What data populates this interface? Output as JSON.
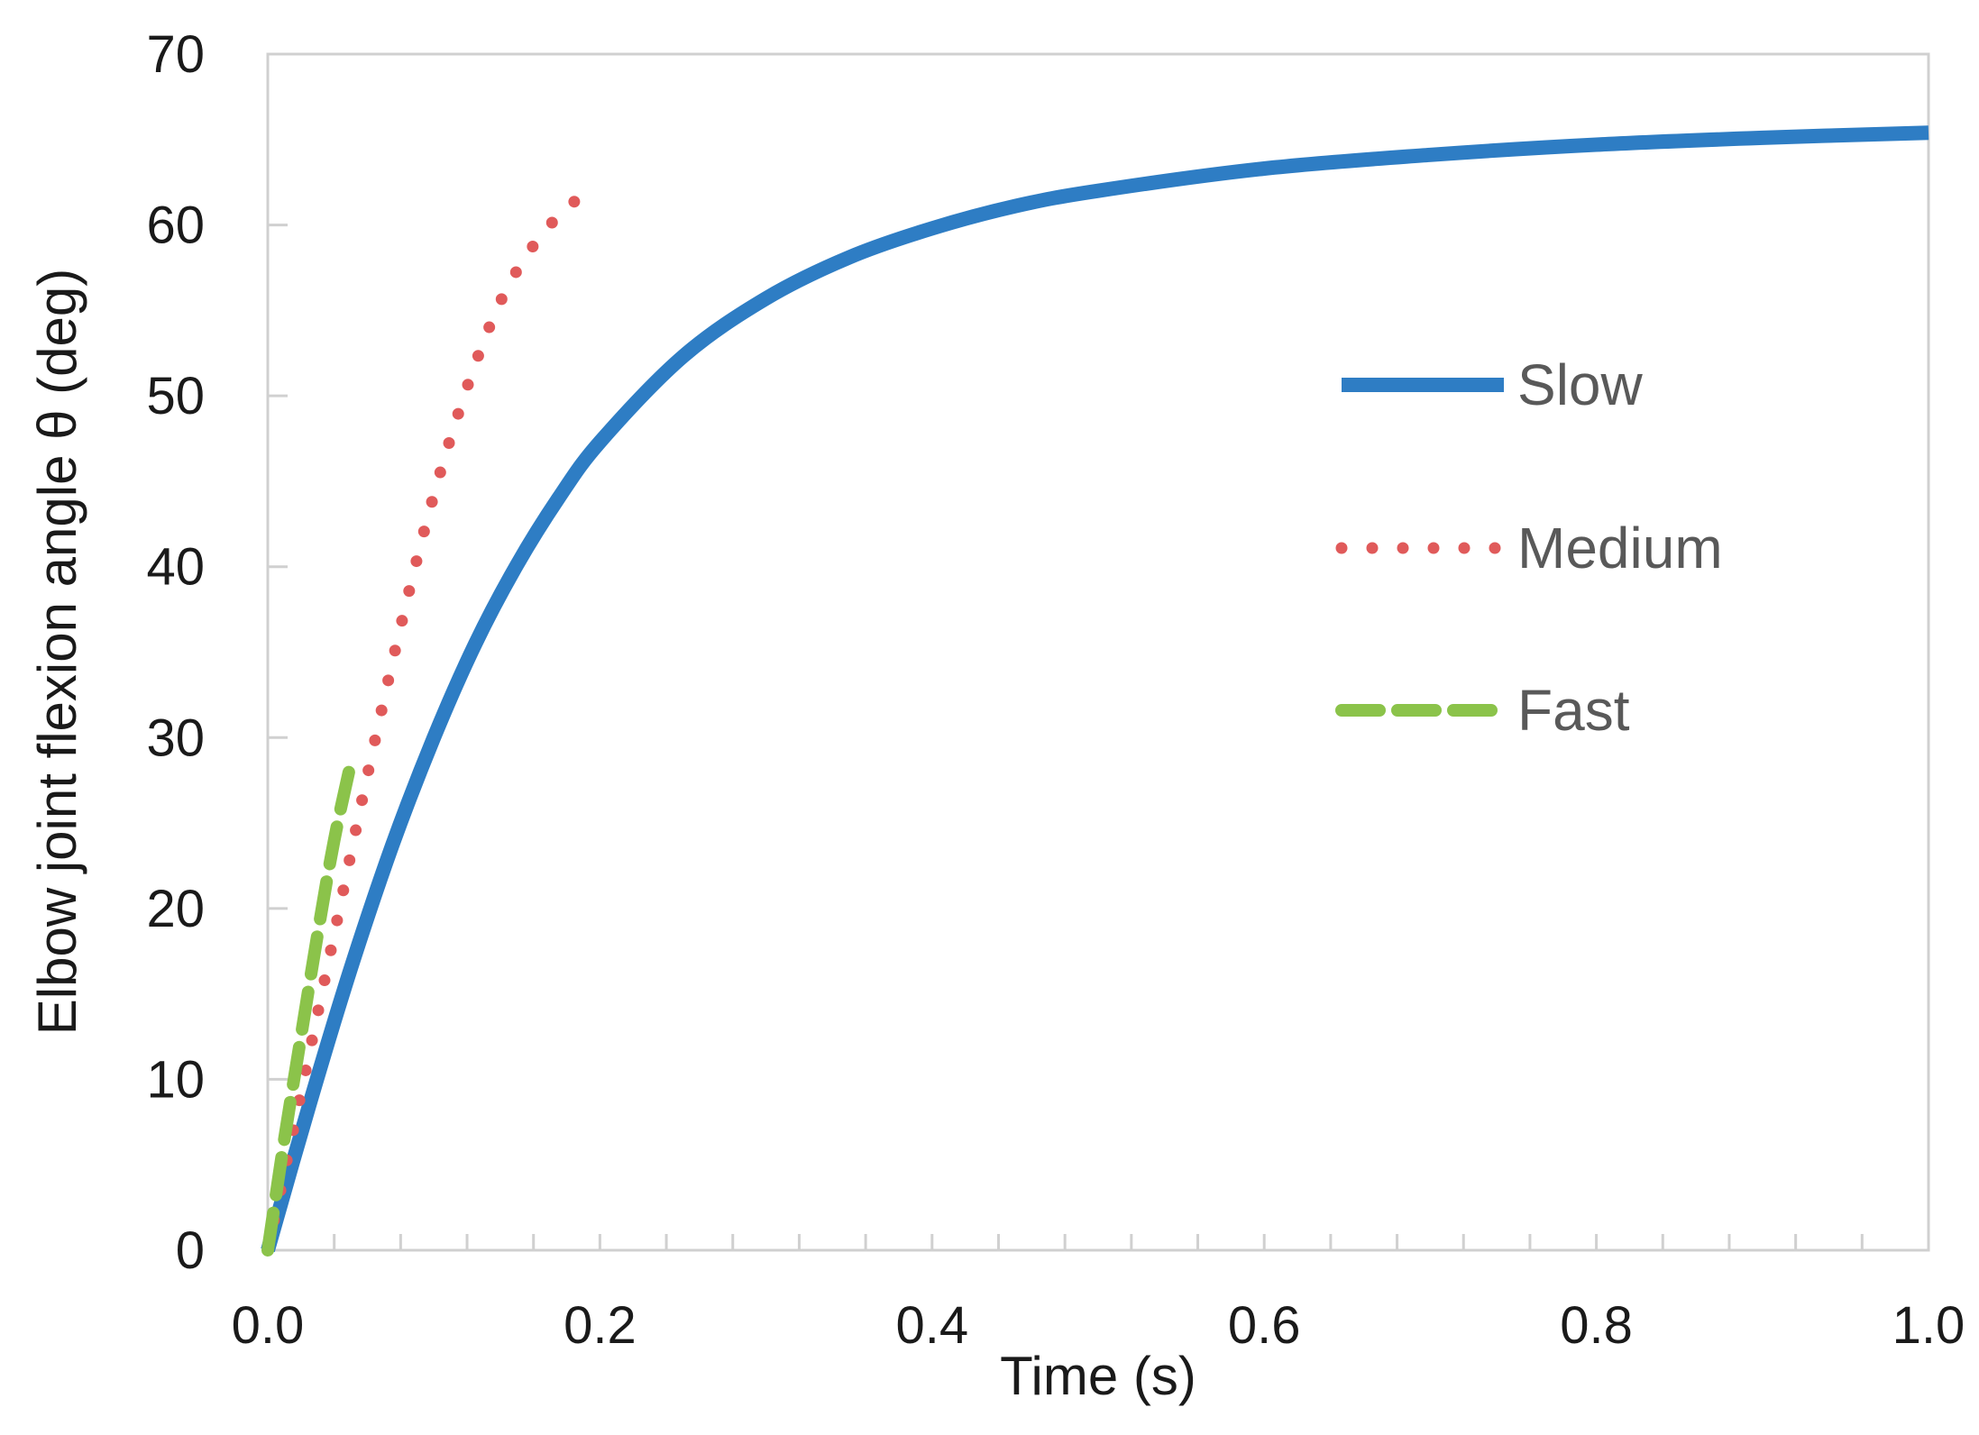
{
  "chart_data": {
    "type": "line",
    "title": "",
    "xlabel": "Time (s)",
    "ylabel": "Elbow joint flexion angle θ (deg)",
    "xlim": [
      0,
      1.0
    ],
    "ylim": [
      0,
      70
    ],
    "x_ticks": [
      "0.0",
      "0.2",
      "0.4",
      "0.6",
      "0.8",
      "1.0"
    ],
    "y_ticks": [
      "0",
      "10",
      "20",
      "30",
      "40",
      "50",
      "60",
      "70"
    ],
    "grid": false,
    "legend_position": "right",
    "series": [
      {
        "name": "Slow",
        "style": "solid",
        "color": "#2e7dc4",
        "x": [
          0,
          0.025,
          0.05,
          0.075,
          0.1,
          0.125,
          0.15,
          0.175,
          0.2,
          0.25,
          0.3,
          0.35,
          0.4,
          0.45,
          0.5,
          0.6,
          0.7,
          0.8,
          0.9,
          1.0
        ],
        "y": [
          0,
          8.5,
          16.5,
          23.7,
          30.0,
          35.5,
          40.1,
          44.0,
          47.3,
          52.3,
          55.7,
          58.1,
          59.8,
          61.1,
          62.0,
          63.3,
          64.1,
          64.7,
          65.1,
          65.4
        ]
      },
      {
        "name": "Medium",
        "style": "dotted",
        "color": "#e05a5a",
        "x": [
          0,
          0.02,
          0.04,
          0.06,
          0.08,
          0.1,
          0.12,
          0.14,
          0.16,
          0.18,
          0.195
        ],
        "y": [
          0,
          9.2,
          18.5,
          27.8,
          36.5,
          44.2,
          50.5,
          55.5,
          58.8,
          61.0,
          62.0
        ]
      },
      {
        "name": "Fast",
        "style": "dashed",
        "color": "#8bc34a",
        "x": [
          0,
          0.01,
          0.02,
          0.03,
          0.04,
          0.05
        ],
        "y": [
          0,
          6.5,
          12.5,
          18.5,
          24.0,
          28.5
        ]
      }
    ]
  }
}
